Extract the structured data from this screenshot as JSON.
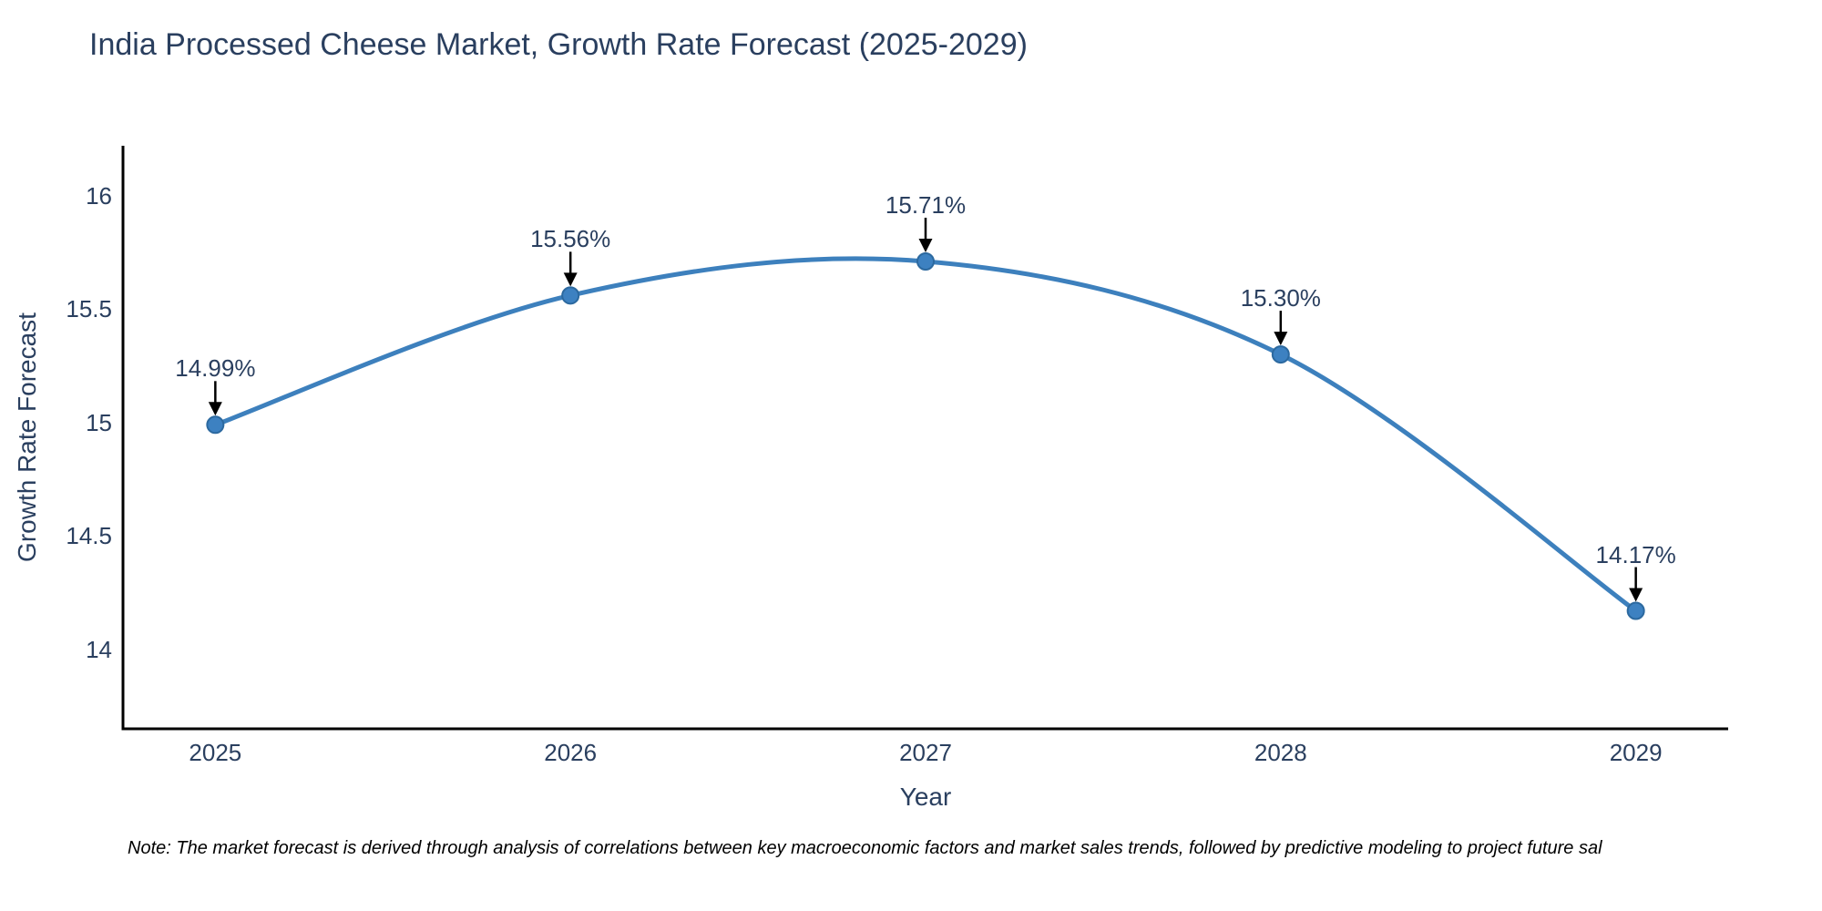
{
  "chart": {
    "title": "India Processed Cheese Market, Growth Rate Forecast (2025-2029)",
    "x_axis_title": "Year",
    "y_axis_title": "Growth Rate Forecast"
  },
  "footnote": "Note: The market forecast is derived through analysis of correlations between key macroeconomic factors and market sales trends, followed by predictive modeling to project future sal",
  "chart_data": {
    "type": "line",
    "title": "India Processed Cheese Market, Growth Rate Forecast (2025-2029)",
    "xlabel": "Year",
    "ylabel": "Growth Rate Forecast",
    "x": [
      2025,
      2026,
      2027,
      2028,
      2029
    ],
    "values": [
      14.99,
      15.56,
      15.71,
      15.3,
      14.17
    ],
    "point_labels": [
      "14.99%",
      "15.56%",
      "15.71%",
      "15.30%",
      "14.17%"
    ],
    "yticks": [
      16,
      15.5,
      15,
      14.5,
      14
    ],
    "ytick_labels": [
      "16",
      "15.5",
      "15",
      "14.5",
      "14"
    ],
    "xtick_labels": [
      "2025",
      "2026",
      "2027",
      "2028",
      "2029"
    ],
    "ylim": [
      13.65,
      16.22
    ],
    "xlim": [
      2024.74,
      2029.26
    ],
    "grid": false,
    "legend": false,
    "line_shape": "spline",
    "colors": {
      "line": "#3d80bd",
      "marker_fill": "#3d81c1",
      "marker_edge": "#2c699f",
      "axis_line": "#000000",
      "text": "#2a3f5f",
      "annotation_arrow": "#000000",
      "background": "#ffffff"
    }
  }
}
